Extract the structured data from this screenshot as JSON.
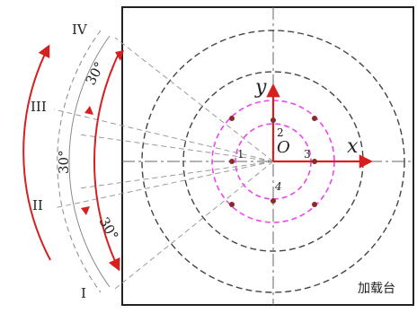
{
  "labels": {
    "roman": [
      "IV",
      "III",
      "II",
      "I"
    ],
    "angles": [
      "30°",
      "30°",
      "30°"
    ],
    "axis_y": "y",
    "axis_x": "x",
    "origin": "O",
    "point_numbers": [
      "1",
      "2",
      "3",
      "4"
    ],
    "platform": "加载台"
  },
  "colors": {
    "red": "#d62020",
    "magenta": "#ee44ee",
    "dot": "#8a2b2b",
    "dash_gray": "#555555",
    "light_gray": "#9a9a9a",
    "black": "#222222"
  }
}
